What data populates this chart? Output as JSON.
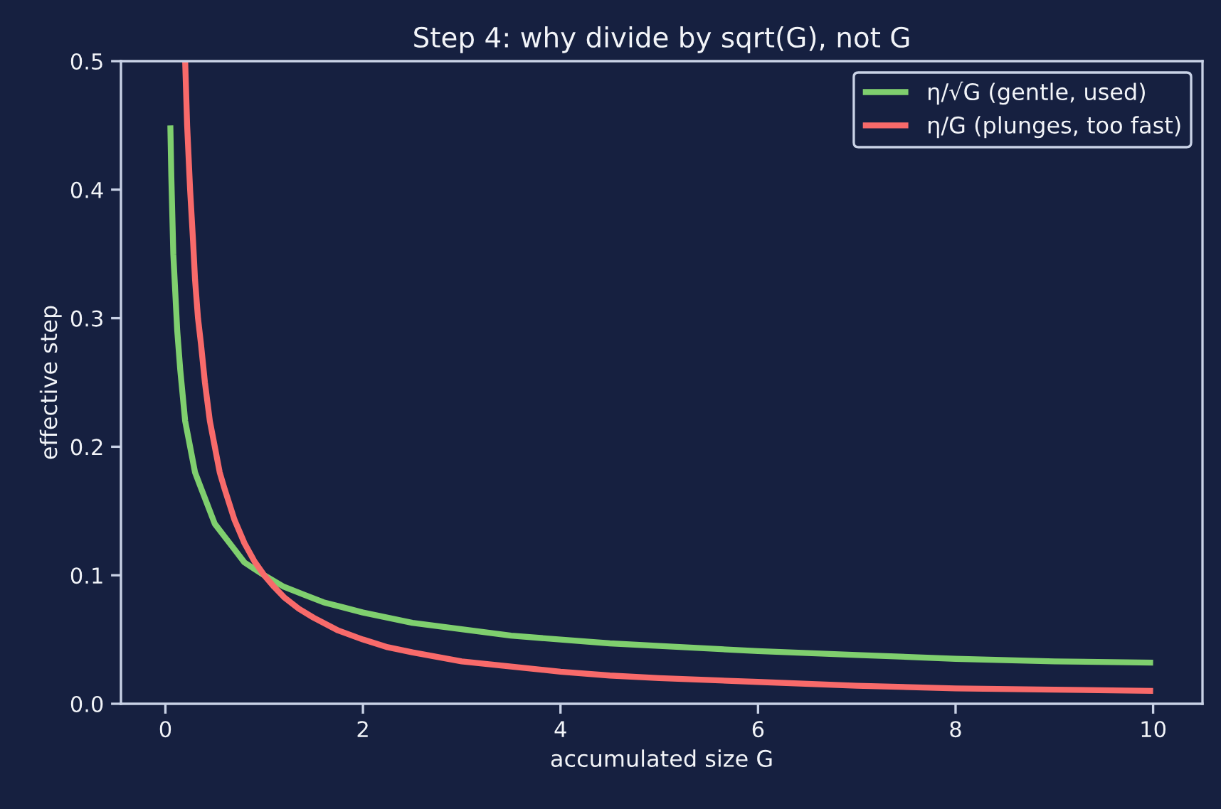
{
  "chart_data": {
    "type": "line",
    "title": "Step 4: why divide by sqrt(G), not G",
    "xlabel": "accumulated size G",
    "ylabel": "effective step",
    "series": [
      {
        "name": "η/√G (gentle, used)",
        "color": "#7fcf6e",
        "x": [
          0.05,
          0.06,
          0.08,
          0.1,
          0.12,
          0.15,
          0.2,
          0.25,
          0.3,
          0.35,
          0.4,
          0.5,
          0.6,
          0.7,
          0.8,
          0.9,
          1,
          1.2,
          1.4,
          1.6,
          1.8,
          2,
          2.5,
          3,
          3.5,
          4,
          4.5,
          5,
          6,
          7,
          8,
          9,
          10
        ],
        "values": [
          0.45,
          0.41,
          0.35,
          0.32,
          0.29,
          0.26,
          0.22,
          0.2,
          0.18,
          0.17,
          0.16,
          0.14,
          0.13,
          0.12,
          0.11,
          0.105,
          0.1,
          0.091,
          0.085,
          0.079,
          0.075,
          0.071,
          0.063,
          0.058,
          0.053,
          0.05,
          0.047,
          0.045,
          0.041,
          0.038,
          0.035,
          0.033,
          0.032
        ]
      },
      {
        "name": "η/G (plunges, too fast)",
        "color": "#f86a6a",
        "x": [
          0.2,
          0.22,
          0.25,
          0.28,
          0.3,
          0.33,
          0.36,
          0.4,
          0.45,
          0.5,
          0.55,
          0.6,
          0.7,
          0.8,
          0.9,
          1,
          1.1,
          1.2,
          1.35,
          1.5,
          1.75,
          2,
          2.25,
          2.5,
          3,
          3.5,
          4,
          4.5,
          5,
          6,
          7,
          8,
          9,
          10
        ],
        "values": [
          0.5,
          0.45,
          0.4,
          0.36,
          0.33,
          0.3,
          0.28,
          0.25,
          0.22,
          0.2,
          0.18,
          0.167,
          0.143,
          0.125,
          0.111,
          0.1,
          0.091,
          0.083,
          0.074,
          0.067,
          0.057,
          0.05,
          0.044,
          0.04,
          0.033,
          0.029,
          0.025,
          0.022,
          0.02,
          0.017,
          0.014,
          0.012,
          0.011,
          0.01
        ]
      }
    ],
    "xlim": [
      -0.45,
      10.5
    ],
    "ylim": [
      0,
      0.5
    ],
    "xticks": [
      0,
      2,
      4,
      6,
      8,
      10
    ],
    "yticks": [
      {
        "value": 0,
        "label": "0.0"
      },
      0.1,
      0.2,
      0.3,
      0.4,
      0.5
    ],
    "grid": false,
    "legend": "top right",
    "marker": "none",
    "line_style": "solid"
  }
}
